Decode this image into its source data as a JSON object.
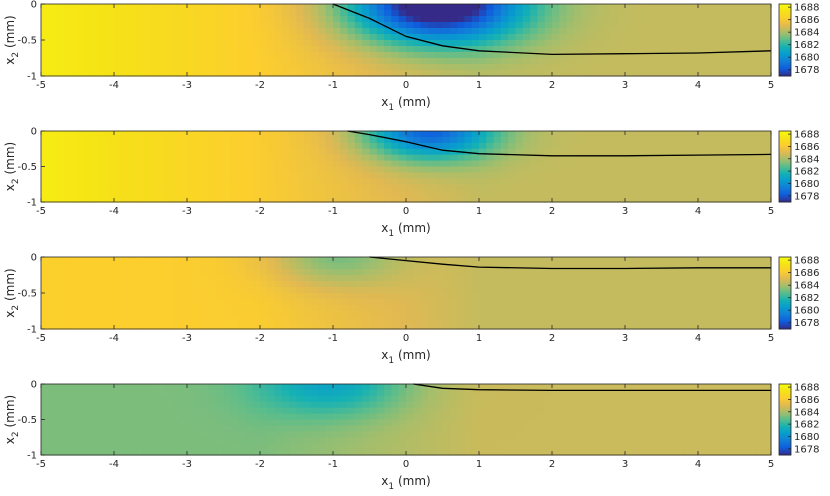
{
  "chart_data": [
    {
      "type": "heatmap",
      "xlabel": "x1 (mm)",
      "ylabel": "x2 (mm)",
      "xlim": [
        -5,
        5
      ],
      "ylim": [
        -1,
        0
      ],
      "xticks": [
        "-5",
        "-4",
        "-3",
        "-2",
        "-1",
        "0",
        "1",
        "2",
        "3",
        "4",
        "5"
      ],
      "yticks": [
        "0",
        "-0.5",
        "-1"
      ],
      "colorbar": {
        "range": [
          1677,
          1688.5
        ],
        "ticks": [
          "1688",
          "1686",
          "1684",
          "1682",
          "1680",
          "1678"
        ]
      },
      "field": {
        "left_value": 1687.8,
        "right_value": 1684.5,
        "shoulder": 1686.2,
        "well_x": 0.4,
        "well_depth": 9.5,
        "well_radius": 1.2
      },
      "boundary_curve": {
        "x": [
          -1.0,
          -0.5,
          0,
          0.5,
          1,
          2,
          3,
          4,
          5
        ],
        "y": [
          0.0,
          -0.2,
          -0.45,
          -0.58,
          -0.65,
          -0.7,
          -0.69,
          -0.68,
          -0.65
        ]
      }
    },
    {
      "type": "heatmap",
      "xlabel": "x1 (mm)",
      "ylabel": "x2 (mm)",
      "xlim": [
        -5,
        5
      ],
      "ylim": [
        -1,
        0
      ],
      "xticks": [
        "-5",
        "-4",
        "-3",
        "-2",
        "-1",
        "0",
        "1",
        "2",
        "3",
        "4",
        "5"
      ],
      "yticks": [
        "0",
        "-0.5",
        "-1"
      ],
      "colorbar": {
        "range": [
          1677,
          1688.5
        ],
        "ticks": [
          "1688",
          "1686",
          "1684",
          "1682",
          "1680",
          "1678"
        ]
      },
      "field": {
        "left_value": 1687.8,
        "right_value": 1684.5,
        "shoulder": 1686.1,
        "well_x": 0.3,
        "well_depth": 6.5,
        "well_radius": 0.9
      },
      "boundary_curve": {
        "x": [
          -0.8,
          -0.5,
          0,
          0.5,
          1,
          2,
          3,
          4,
          5
        ],
        "y": [
          0.0,
          -0.05,
          -0.15,
          -0.27,
          -0.32,
          -0.35,
          -0.35,
          -0.34,
          -0.33
        ]
      }
    },
    {
      "type": "heatmap",
      "xlabel": "x1 (mm)",
      "ylabel": "x2 (mm)",
      "xlim": [
        -5,
        5
      ],
      "ylim": [
        -1,
        0
      ],
      "xticks": [
        "-5",
        "-4",
        "-3",
        "-2",
        "-1",
        "0",
        "1",
        "2",
        "3",
        "4",
        "5"
      ],
      "yticks": [
        "0",
        "-0.5",
        "-1"
      ],
      "colorbar": {
        "range": [
          1677,
          1688.5
        ],
        "ticks": [
          "1688",
          "1686",
          "1684",
          "1682",
          "1680",
          "1678"
        ]
      },
      "field": {
        "left_value": 1686.3,
        "right_value": 1684.5,
        "shoulder": 1686.1,
        "well_x": -1.0,
        "well_depth": 2.3,
        "well_radius": 0.9
      },
      "boundary_curve": {
        "x": [
          -0.5,
          0,
          0.5,
          1,
          2,
          3,
          4,
          5
        ],
        "y": [
          0.0,
          -0.05,
          -0.1,
          -0.14,
          -0.16,
          -0.16,
          -0.15,
          -0.15
        ]
      }
    },
    {
      "type": "heatmap",
      "xlabel": "x1 (mm)",
      "ylabel": "x2 (mm)",
      "xlim": [
        -5,
        5
      ],
      "ylim": [
        -1,
        0
      ],
      "xticks": [
        "-5",
        "-4",
        "-3",
        "-2",
        "-1",
        "0",
        "1",
        "2",
        "3",
        "4",
        "5"
      ],
      "yticks": [
        "0",
        "-0.5",
        "-1"
      ],
      "colorbar": {
        "range": [
          1677,
          1688.5
        ],
        "ticks": [
          "1688",
          "1686",
          "1684",
          "1682",
          "1680",
          "1678"
        ]
      },
      "field": {
        "left_value": 1683.3,
        "right_value": 1684.6,
        "shoulder": 1683.3,
        "well_x": -1.0,
        "well_depth": 2.8,
        "well_radius": 1.0
      },
      "boundary_curve": {
        "x": [
          0.1,
          0.5,
          1,
          2,
          3,
          4,
          5
        ],
        "y": [
          0.0,
          -0.06,
          -0.08,
          -0.09,
          -0.09,
          -0.09,
          -0.09
        ]
      }
    }
  ]
}
